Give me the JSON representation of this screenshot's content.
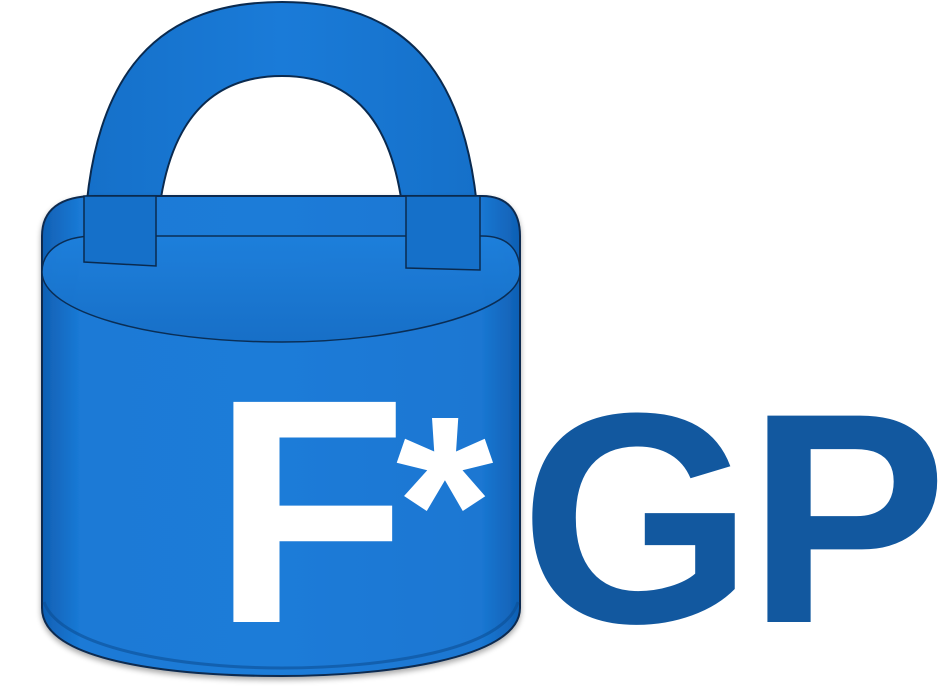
{
  "logo": {
    "letter_f": "F",
    "asterisk": "*",
    "letters_gp": "GP",
    "icon": "padlock-icon",
    "colors": {
      "lock_body": "#1978d4",
      "lock_outline": "#0a2a4f",
      "text_gp": "#12589f",
      "text_f": "#ffffff"
    }
  }
}
